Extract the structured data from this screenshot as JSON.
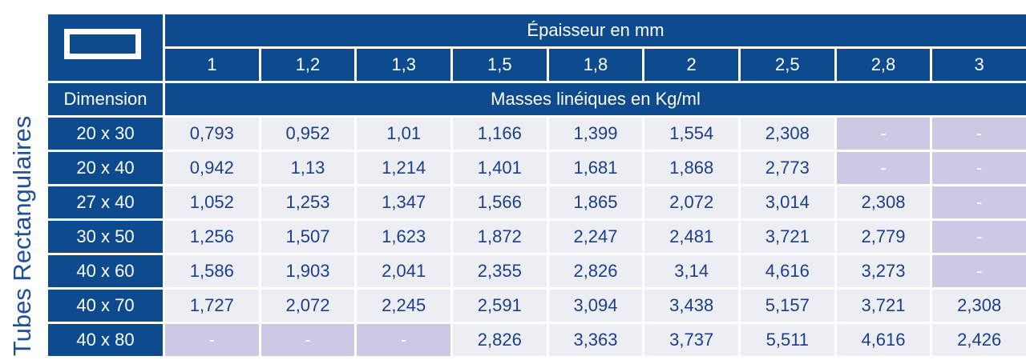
{
  "side_label": "Tubes Rectangulaires",
  "header": {
    "title": "Épaisseur en mm",
    "thicknesses": [
      "1",
      "1,2",
      "1,3",
      "1,5",
      "1,8",
      "2",
      "2,5",
      "2,8",
      "3"
    ],
    "dimension_label": "Dimension",
    "masses_label": "Masses linéiques en Kg/ml"
  },
  "table": {
    "rows": [
      {
        "dimension": "20 x 30",
        "values": [
          "0,793",
          "0,952",
          "1,01",
          "1,166",
          "1,399",
          "1,554",
          "2,308",
          "-",
          "-"
        ]
      },
      {
        "dimension": "20 x 40",
        "values": [
          "0,942",
          "1,13",
          "1,214",
          "1,401",
          "1,681",
          "1,868",
          "2,773",
          "-",
          "-"
        ]
      },
      {
        "dimension": "27 x 40",
        "values": [
          "1,052",
          "1,253",
          "1,347",
          "1,566",
          "1,865",
          "2,072",
          "3,014",
          "2,308",
          "-"
        ]
      },
      {
        "dimension": "30 x 50",
        "values": [
          "1,256",
          "1,507",
          "1,623",
          "1,872",
          "2,247",
          "2,481",
          "3,721",
          "2,779",
          "-"
        ]
      },
      {
        "dimension": "40 x 60",
        "values": [
          "1,586",
          "1,903",
          "2,041",
          "2,355",
          "2,826",
          "3,14",
          "4,616",
          "3,273",
          "-"
        ]
      },
      {
        "dimension": "40 x 70",
        "values": [
          "1,727",
          "2,072",
          "2,245",
          "2,591",
          "3,094",
          "3,438",
          "5,157",
          "3,721",
          "2,308"
        ]
      },
      {
        "dimension": "40 x 80",
        "values": [
          "-",
          "-",
          "-",
          "2,826",
          "3,363",
          "3,737",
          "5,511",
          "4,616",
          "2,426"
        ]
      }
    ]
  }
}
